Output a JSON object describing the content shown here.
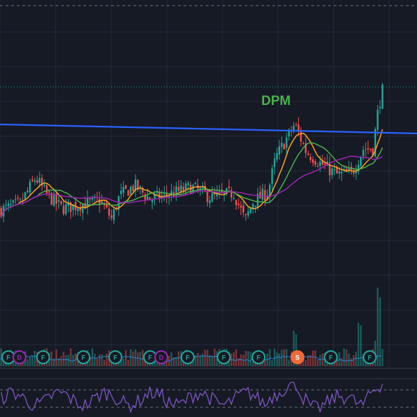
{
  "chart_data": {
    "type": "candlestick",
    "title": "DPM",
    "grid": true,
    "colors": {
      "background": "#161a25",
      "grid": "#262b37",
      "up": "#26a69a",
      "down": "#ef5350",
      "trendline": "#2962ff",
      "ma_fast": "#f5a623",
      "ma_mid": "#4caf50",
      "ma_slow": "#9c27b0",
      "rsi": "#7e57c2",
      "title": "#4caf50",
      "dividend_badge": "#9c27b0",
      "financial_badge": "#26a69a",
      "split_badge": "#ef6c3a"
    },
    "price_path": [
      {
        "t": 0,
        "p": 0.4
      },
      {
        "t": 0.05,
        "p": 0.44
      },
      {
        "t": 0.09,
        "p": 0.61
      },
      {
        "t": 0.12,
        "p": 0.5
      },
      {
        "t": 0.16,
        "p": 0.41
      },
      {
        "t": 0.2,
        "p": 0.43
      },
      {
        "t": 0.26,
        "p": 0.46
      },
      {
        "t": 0.29,
        "p": 0.34
      },
      {
        "t": 0.31,
        "p": 0.49
      },
      {
        "t": 0.35,
        "p": 0.56
      },
      {
        "t": 0.39,
        "p": 0.47
      },
      {
        "t": 0.44,
        "p": 0.5
      },
      {
        "t": 0.5,
        "p": 0.55
      },
      {
        "t": 0.55,
        "p": 0.48
      },
      {
        "t": 0.61,
        "p": 0.51
      },
      {
        "t": 0.64,
        "p": 0.33
      },
      {
        "t": 0.66,
        "p": 0.45
      },
      {
        "t": 0.7,
        "p": 0.52
      },
      {
        "t": 0.72,
        "p": 0.74
      },
      {
        "t": 0.77,
        "p": 0.96
      },
      {
        "t": 0.8,
        "p": 0.78
      },
      {
        "t": 0.84,
        "p": 0.7
      },
      {
        "t": 0.88,
        "p": 0.63
      },
      {
        "t": 0.92,
        "p": 0.64
      },
      {
        "t": 0.95,
        "p": 0.8
      },
      {
        "t": 0.975,
        "p": 0.8
      },
      {
        "t": 0.99,
        "p": 1.08
      },
      {
        "t": 1.0,
        "p": 1.18
      }
    ],
    "volume_spikes": [
      {
        "t": 0.77,
        "v": 0.45
      },
      {
        "t": 0.94,
        "v": 0.55
      },
      {
        "t": 0.99,
        "v": 0.95
      }
    ],
    "event_badges": [
      {
        "label": "F",
        "kind": "F"
      },
      {
        "label": "D",
        "kind": "D"
      },
      {
        "label": "F",
        "kind": "F"
      },
      {
        "label": "F",
        "kind": "F"
      },
      {
        "label": "F",
        "kind": "F"
      },
      {
        "label": "F",
        "kind": "F"
      },
      {
        "label": "D",
        "kind": "D"
      },
      {
        "label": "F",
        "kind": "F"
      },
      {
        "label": "F",
        "kind": "F"
      },
      {
        "label": "F",
        "kind": "F"
      },
      {
        "label": "S",
        "kind": "S"
      },
      {
        "label": "F",
        "kind": "F"
      },
      {
        "label": "F",
        "kind": "F"
      },
      {
        "label": "F",
        "kind": "F"
      }
    ]
  }
}
